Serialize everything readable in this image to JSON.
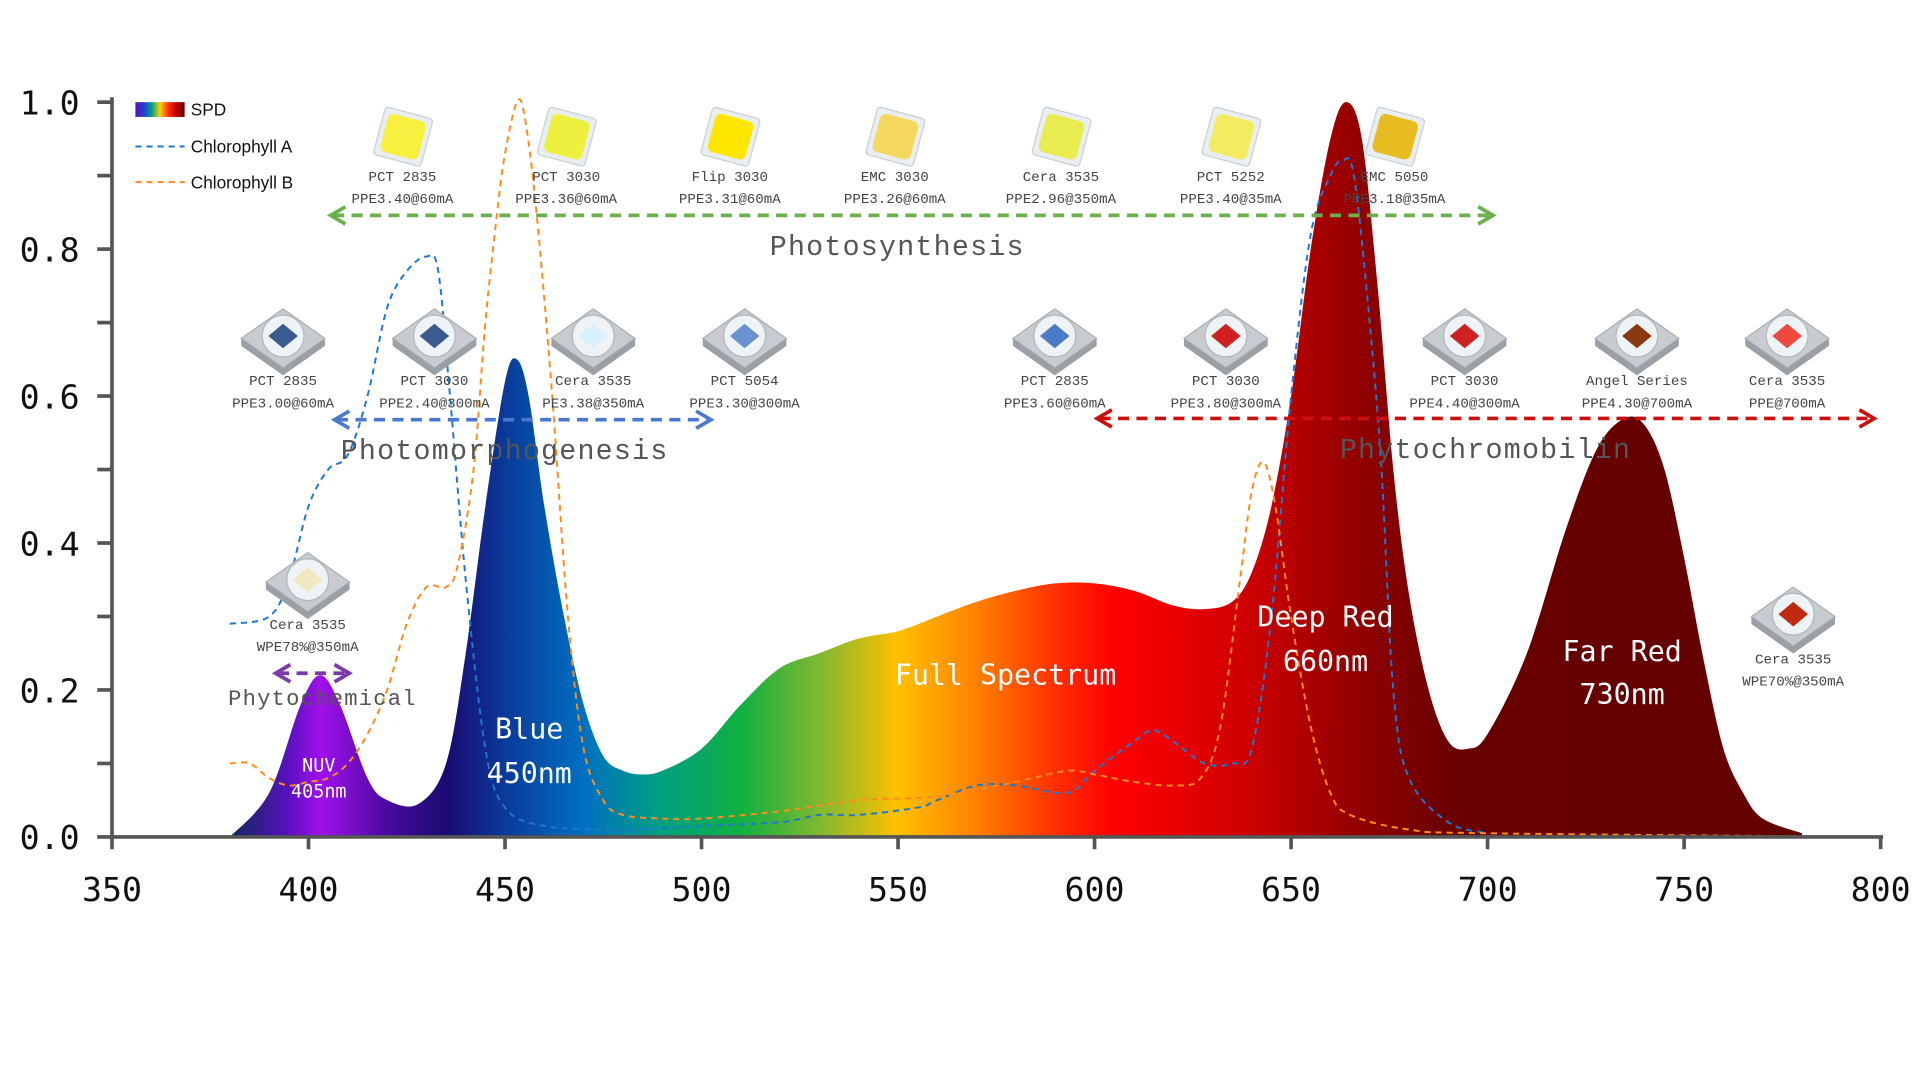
{
  "chart_data": {
    "type": "area",
    "title": "",
    "xlabel": "",
    "ylabel": "",
    "xlim": [
      350,
      800
    ],
    "ylim": [
      0,
      1.0
    ],
    "x_ticks": [
      "350",
      "400",
      "450",
      "500",
      "550",
      "600",
      "650",
      "700",
      "750",
      "800"
    ],
    "y_ticks": [
      "0.0",
      "0.2",
      "0.4",
      "0.6",
      "0.8",
      "1.0"
    ],
    "grid": false,
    "legend_placement": "top-left",
    "legend": [
      "SPD",
      "Chlorophyll A",
      "Chlorophyll B"
    ],
    "series": [
      {
        "name": "SPD",
        "style": "spectral-gradient-fill",
        "x": [
          380,
          390,
          398,
          403,
          408,
          415,
          420,
          428,
          435,
          440,
          445,
          450,
          453,
          456,
          460,
          465,
          470,
          475,
          480,
          485,
          490,
          500,
          510,
          520,
          530,
          540,
          550,
          560,
          570,
          580,
          590,
          600,
          610,
          620,
          628,
          635,
          640,
          645,
          650,
          655,
          660,
          664,
          668,
          672,
          676,
          680,
          685,
          690,
          695,
          700,
          710,
          720,
          728,
          735,
          740,
          745,
          750,
          755,
          760,
          765,
          770,
          780
        ],
        "y": [
          0,
          0.06,
          0.18,
          0.22,
          0.18,
          0.08,
          0.05,
          0.045,
          0.1,
          0.25,
          0.45,
          0.62,
          0.65,
          0.6,
          0.45,
          0.3,
          0.18,
          0.11,
          0.09,
          0.085,
          0.09,
          0.12,
          0.18,
          0.23,
          0.25,
          0.27,
          0.28,
          0.3,
          0.32,
          0.335,
          0.345,
          0.345,
          0.335,
          0.315,
          0.31,
          0.32,
          0.36,
          0.45,
          0.6,
          0.8,
          0.95,
          1.0,
          0.95,
          0.75,
          0.5,
          0.33,
          0.2,
          0.13,
          0.12,
          0.14,
          0.25,
          0.42,
          0.53,
          0.57,
          0.56,
          0.5,
          0.38,
          0.24,
          0.12,
          0.06,
          0.025,
          0.005
        ]
      },
      {
        "name": "Chlorophyll A",
        "color": "#1f77d0",
        "style": "dashed",
        "x": [
          380,
          390,
          395,
          400,
          405,
          410,
          415,
          420,
          425,
          430,
          433,
          436,
          440,
          445,
          450,
          460,
          480,
          500,
          520,
          530,
          540,
          555,
          560,
          570,
          580,
          593,
          600,
          610,
          615,
          620,
          628,
          635,
          640,
          645,
          650,
          655,
          660,
          663,
          666,
          670,
          673,
          676,
          680,
          690,
          700
        ],
        "y": [
          0.29,
          0.3,
          0.35,
          0.45,
          0.5,
          0.52,
          0.6,
          0.72,
          0.77,
          0.79,
          0.77,
          0.6,
          0.35,
          0.12,
          0.04,
          0.015,
          0.01,
          0.015,
          0.02,
          0.03,
          0.03,
          0.04,
          0.05,
          0.07,
          0.07,
          0.06,
          0.09,
          0.13,
          0.145,
          0.13,
          0.1,
          0.1,
          0.12,
          0.3,
          0.6,
          0.82,
          0.9,
          0.92,
          0.9,
          0.7,
          0.5,
          0.2,
          0.08,
          0.02,
          0.005
        ]
      },
      {
        "name": "Chlorophyll B",
        "color": "#ff8c1a",
        "style": "dashed",
        "x": [
          380,
          385,
          390,
          395,
          400,
          405,
          410,
          415,
          420,
          425,
          430,
          435,
          438,
          442,
          445,
          448,
          450,
          453,
          455,
          458,
          462,
          466,
          470,
          475,
          480,
          490,
          500,
          520,
          540,
          560,
          580,
          593,
          600,
          610,
          620,
          627,
          632,
          637,
          640,
          643,
          646,
          650,
          655,
          660,
          665,
          680,
          700,
          800
        ],
        "y": [
          0.1,
          0.1,
          0.08,
          0.07,
          0.075,
          0.08,
          0.1,
          0.14,
          0.2,
          0.29,
          0.34,
          0.34,
          0.37,
          0.5,
          0.7,
          0.85,
          0.93,
          1.0,
          0.98,
          0.85,
          0.6,
          0.3,
          0.12,
          0.05,
          0.03,
          0.025,
          0.025,
          0.035,
          0.05,
          0.055,
          0.075,
          0.09,
          0.085,
          0.075,
          0.07,
          0.08,
          0.15,
          0.35,
          0.47,
          0.51,
          0.45,
          0.3,
          0.15,
          0.06,
          0.03,
          0.01,
          0.005,
          0
        ]
      }
    ],
    "spectrum_gradient": [
      {
        "nm": 380,
        "color": "#0b2a5a"
      },
      {
        "nm": 395,
        "color": "#5a10c0"
      },
      {
        "nm": 403,
        "color": "#a010ea"
      },
      {
        "nm": 420,
        "color": "#4a0aa0"
      },
      {
        "nm": 435,
        "color": "#1a0a70"
      },
      {
        "nm": 450,
        "color": "#0a3a9a"
      },
      {
        "nm": 470,
        "color": "#0070c0"
      },
      {
        "nm": 490,
        "color": "#00a080"
      },
      {
        "nm": 510,
        "color": "#10b040"
      },
      {
        "nm": 530,
        "color": "#80b830"
      },
      {
        "nm": 550,
        "color": "#ffc000"
      },
      {
        "nm": 570,
        "color": "#ff8000"
      },
      {
        "nm": 590,
        "color": "#ff3000"
      },
      {
        "nm": 605,
        "color": "#ff0000"
      },
      {
        "nm": 640,
        "color": "#cc0000"
      },
      {
        "nm": 660,
        "color": "#a00000"
      },
      {
        "nm": 690,
        "color": "#6a0000"
      },
      {
        "nm": 800,
        "color": "#600000"
      }
    ],
    "peak_labels": [
      {
        "line1": "NUV",
        "line2": "405nm"
      },
      {
        "line1": "Blue",
        "line2": "450nm"
      },
      {
        "line1": "Full Spectrum",
        "line2": ""
      },
      {
        "line1": "Deep Red",
        "line2": "660nm"
      },
      {
        "line1": "Far Red",
        "line2": "730nm"
      }
    ],
    "regions": [
      {
        "label": "Photosynthesis",
        "color": "#6ab04c",
        "from_nm": 405,
        "to_nm": 702
      },
      {
        "label": "Photomorphogenesis",
        "color": "#4a78d0",
        "from_nm": 406,
        "to_nm": 503
      },
      {
        "label": "Phytochromobilin",
        "color": "#cc1010",
        "from_nm": 600,
        "to_nm": 799
      },
      {
        "label": "Phytochemical",
        "color": "#7a3aaa",
        "from_nm": 391,
        "to_nm": 411
      }
    ],
    "products": [
      {
        "name": "PCT 2835",
        "spec": "PPE3.40@60mA",
        "die": "#f8f040"
      },
      {
        "name": "PCT 3030",
        "spec": "PPE3.36@60mA",
        "die": "#eef040"
      },
      {
        "name": "Flip 3030",
        "spec": "PPE3.31@60mA",
        "die": "#ffe600"
      },
      {
        "name": "EMC 3030",
        "spec": "PPE3.26@60mA",
        "die": "#f5d860"
      },
      {
        "name": "Cera 3535",
        "spec": "PPE2.96@350mA",
        "die": "#e8ec50"
      },
      {
        "name": "PCT 5252",
        "spec": "PPE3.40@35mA",
        "die": "#f4ec60"
      },
      {
        "name": "EMC 5050",
        "spec": "PPE3.18@35mA",
        "die": "#e6bc20"
      },
      {
        "name": "PCT 2835",
        "spec": "PPE3.00@60mA",
        "die": "#3a5a90"
      },
      {
        "name": "PCT 3030",
        "spec": "PPE2.40@300mA",
        "die": "#3a5a90"
      },
      {
        "name": "Cera 3535",
        "spec": "PE3.38@350mA",
        "die": "#d8f0ff"
      },
      {
        "name": "PCT 5054",
        "spec": "PPE3.30@300mA",
        "die": "#6a90d0"
      },
      {
        "name": "PCT 2835",
        "spec": "PPE3.60@60mA",
        "die": "#4a7ac8"
      },
      {
        "name": "PCT 3030",
        "spec": "PPE3.80@300mA",
        "die": "#d02020"
      },
      {
        "name": "PCT 3030",
        "spec": "PPE4.40@300mA",
        "die": "#d02020"
      },
      {
        "name": "Angel Series",
        "spec": "PPE4.30@700mA",
        "die": "#8a3a10"
      },
      {
        "name": "Cera 3535",
        "spec": "PPE@700mA",
        "die": "#f04a40"
      },
      {
        "name": "Cera 3535",
        "spec": "WPE78%@350mA",
        "die": "#f0e8c0"
      },
      {
        "name": "Cera 3535",
        "spec": "WPE70%@350mA",
        "die": "#c02a10"
      }
    ]
  }
}
